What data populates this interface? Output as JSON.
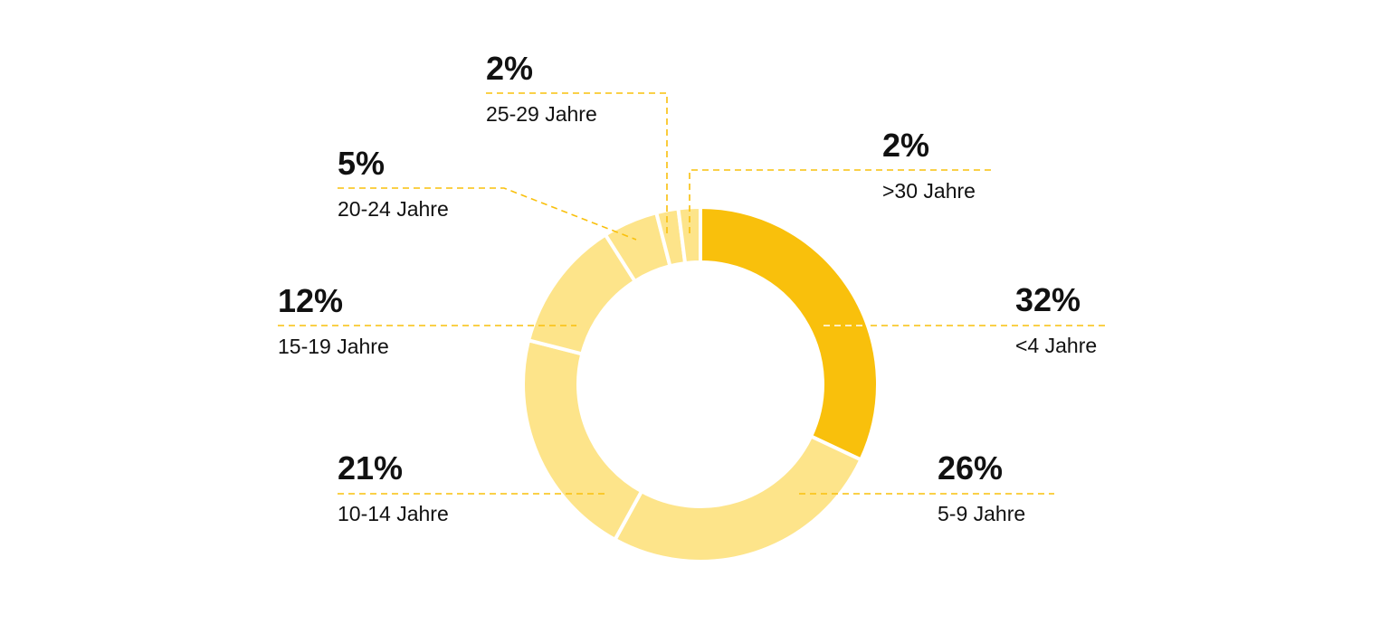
{
  "chart_data": {
    "type": "pie",
    "variant": "donut",
    "start": "top, clockwise",
    "categories": [
      "<4 Jahre",
      "5-9 Jahre",
      "10-14 Jahre",
      "15-19 Jahre",
      "20-24 Jahre",
      "25-29 Jahre",
      ">30 Jahre"
    ],
    "values": [
      32,
      26,
      21,
      12,
      5,
      2,
      2
    ],
    "value_labels": [
      "32%",
      "26%",
      "21%",
      "12%",
      "5%",
      "2%",
      "2%"
    ],
    "colors": [
      "#F9C00C",
      "#FDE48A",
      "#FDE48A",
      "#FDE48A",
      "#FDE48A",
      "#FDE48A",
      "#FDE48A"
    ],
    "leader_color": "#F9C00C",
    "legend": "none"
  }
}
